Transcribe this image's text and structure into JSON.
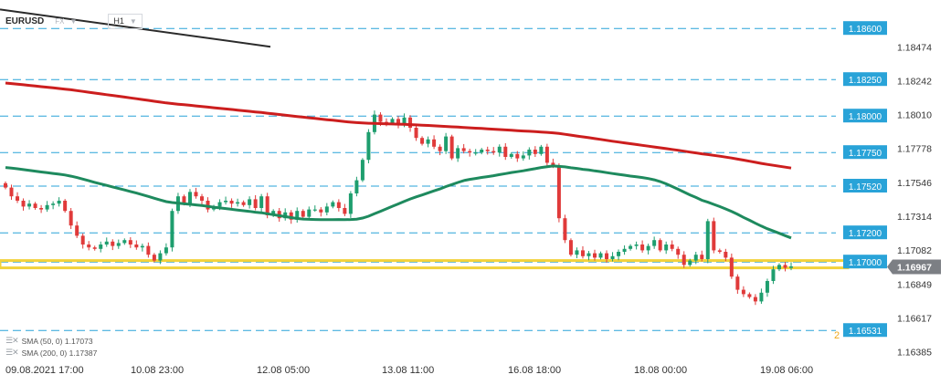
{
  "header": {
    "symbol": "EURUSD",
    "instrument_type": "FX",
    "timeframe": "H1"
  },
  "indicators": [
    {
      "label": "SMA (50, 0) 1.17073",
      "color": "#1e8a5e"
    },
    {
      "label": "SMA (200, 0) 1.17387",
      "color": "#cc1e1e"
    }
  ],
  "colors": {
    "up_candle": "#1e9e6e",
    "down_candle": "#e03a3a",
    "sma50": "#1e8a5e",
    "sma200": "#cc1e1e",
    "trendline": "#2b2b2b",
    "level_line": "#29a3d8",
    "zone": "#f2d23a",
    "price_tag": "#7c7f84"
  },
  "chart_data": {
    "type": "candlestick",
    "title": "EURUSD",
    "x_ticks": [
      "09.08.2021  17:00",
      "10.08  23:00",
      "12.08  05:00",
      "13.08  11:00",
      "16.08  18:00",
      "18.08  00:00",
      "19.08  06:00"
    ],
    "y_ticks": [
      1.18474,
      1.18242,
      1.1801,
      1.17778,
      1.17546,
      1.17314,
      1.17082,
      1.16849,
      1.16617,
      1.16385
    ],
    "ylim": [
      1.1632,
      1.1872
    ],
    "current_price": 1.16967,
    "levels": [
      1.186,
      1.1825,
      1.18,
      1.1775,
      1.1752,
      1.172,
      1.17,
      1.16531
    ],
    "zone": [
      1.1696,
      1.1701
    ],
    "levels_partial": [
      "2"
    ],
    "sma50_current": 1.17073,
    "sma200_current": 1.17387,
    "candle_closes": [
      1.1751,
      1.1745,
      1.1742,
      1.1738,
      1.174,
      1.1737,
      1.1736,
      1.1739,
      1.174,
      1.1742,
      1.1735,
      1.1725,
      1.1718,
      1.1712,
      1.171,
      1.1709,
      1.1712,
      1.1714,
      1.1711,
      1.1713,
      1.1715,
      1.1712,
      1.171,
      1.1711,
      1.1705,
      1.1701,
      1.1706,
      1.171,
      1.1735,
      1.1745,
      1.174,
      1.1748,
      1.1745,
      1.1742,
      1.1736,
      1.1738,
      1.1741,
      1.1742,
      1.174,
      1.1741,
      1.1739,
      1.1743,
      1.1737,
      1.1745,
      1.1732,
      1.1735,
      1.173,
      1.1734,
      1.1729,
      1.1735,
      1.1731,
      1.1736,
      1.1736,
      1.1734,
      1.1738,
      1.1741,
      1.1737,
      1.1733,
      1.1747,
      1.1756,
      1.177,
      1.1789,
      1.1801,
      1.1796,
      1.1795,
      1.1798,
      1.1794,
      1.1799,
      1.1792,
      1.1785,
      1.1781,
      1.1784,
      1.1779,
      1.1776,
      1.1786,
      1.1771,
      1.1778,
      1.1776,
      1.1775,
      1.1775,
      1.1777,
      1.1776,
      1.1775,
      1.1779,
      1.1772,
      1.1774,
      1.1771,
      1.1773,
      1.1777,
      1.1774,
      1.1779,
      1.1768,
      1.1766,
      1.173,
      1.1715,
      1.1705,
      1.1708,
      1.1704,
      1.1706,
      1.1703,
      1.1706,
      1.1702,
      1.1704,
      1.1707,
      1.1709,
      1.1711,
      1.1712,
      1.1708,
      1.1711,
      1.1715,
      1.1708,
      1.1712,
      1.1709,
      1.1705,
      1.1698,
      1.1701,
      1.1705,
      1.1702,
      1.1728,
      1.1708,
      1.1707,
      1.1703,
      1.169,
      1.1681,
      1.1678,
      1.1676,
      1.1673,
      1.1679,
      1.1687,
      1.1695,
      1.1698,
      1.1696,
      1.1697
    ]
  }
}
